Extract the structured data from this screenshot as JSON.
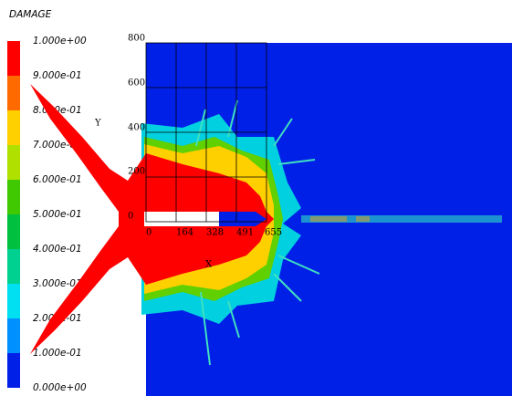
{
  "title": "DAMAGE",
  "legend": {
    "labels": [
      "1.000e+00",
      "9.000e-01",
      "8.000e-01",
      "7.000e-01",
      "6.000e-01",
      "5.000e-01",
      "4.000e-01",
      "3.000e-01",
      "2.000e-01",
      "1.000e-01",
      "0.000e+00"
    ],
    "colors": [
      "#ff0000",
      "#ff6a00",
      "#ffd000",
      "#b0e000",
      "#40c800",
      "#00c040",
      "#00d090",
      "#00e0f0",
      "#0090ff",
      "#0020e8"
    ]
  },
  "axes": {
    "x_label": "X",
    "y_label": "Y",
    "x_ticks": [
      "0",
      "164",
      "328",
      "491",
      "655"
    ],
    "y_ticks": [
      "800",
      "600",
      "400",
      "200",
      "0"
    ]
  }
}
